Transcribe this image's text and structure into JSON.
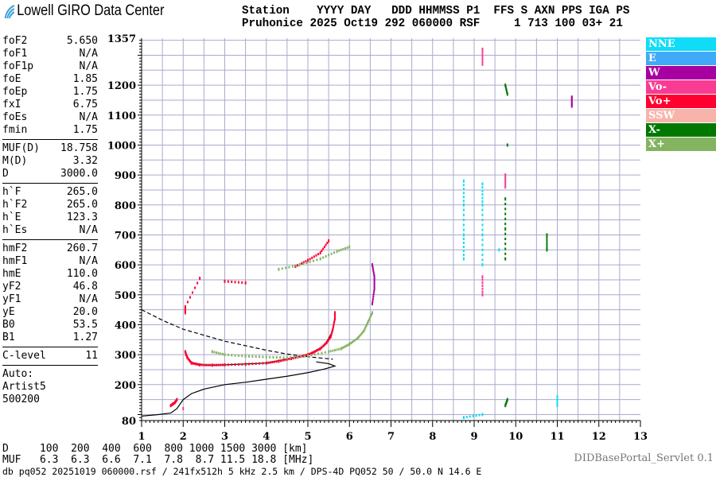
{
  "logo": {
    "text": "Lowell GIRO Data Center"
  },
  "header": {
    "line1": "Station    YYYY DAY   DDD HHMMSS P1  FFS S AXN PPS IGA PS",
    "line2": "Pruhonice 2025 Oct19 292 060000 RSF     1 713 100 03+ 21"
  },
  "params": [
    [
      [
        "foF2",
        "5.650"
      ],
      [
        "foF1",
        "N/A"
      ],
      [
        "foF1p",
        "N/A"
      ],
      [
        "foE",
        "1.85"
      ],
      [
        "foEp",
        "1.75"
      ],
      [
        "fxI",
        "6.75"
      ],
      [
        "foEs",
        "N/A"
      ],
      [
        "fmin",
        "1.75"
      ]
    ],
    [
      [
        "MUF(D)",
        "18.758"
      ],
      [
        "M(D)",
        "3.32"
      ],
      [
        "D",
        "3000.0"
      ]
    ],
    [
      [
        "h`F",
        "265.0"
      ],
      [
        "h`F2",
        "265.0"
      ],
      [
        "h`E",
        "123.3"
      ],
      [
        "h`Es",
        "N/A"
      ]
    ],
    [
      [
        "hmF2",
        "260.7"
      ],
      [
        "hmF1",
        "N/A"
      ],
      [
        "hmE",
        "110.0"
      ],
      [
        "yF2",
        "46.8"
      ],
      [
        "yF1",
        "N/A"
      ],
      [
        "yE",
        "20.0"
      ],
      [
        "B0",
        "53.5"
      ],
      [
        "B1",
        "1.27"
      ]
    ],
    [
      [
        "C-level",
        "11"
      ]
    ]
  ],
  "auto": [
    "Auto:",
    "Artist5",
    "500200"
  ],
  "bottom": {
    "d_line": "D     100  200  400  600  800 1000 1500 3000 [km]",
    "muf_line": "MUF   6.3  6.3  6.6  7.1  7.8  8.7 11.5 18.8 [MHz]"
  },
  "footer": "db pq052 20251019 060000.rsf / 241fx512h 5 kHz 2.5 km / DPS-4D PQ052 50 / 50.0 N 14.6 E",
  "servlet": "DIDBasePortal_Servlet 0.1",
  "legend": [
    {
      "label": "NNE",
      "color": "#10dcf8"
    },
    {
      "label": "E",
      "color": "#40aaf8"
    },
    {
      "label": "W",
      "color": "#a800a0"
    },
    {
      "label": "Vo-",
      "color": "#f83c94"
    },
    {
      "label": "Vo+",
      "color": "#ff0030"
    },
    {
      "label": "SSW",
      "color": "#f8b4aa"
    },
    {
      "label": "X-",
      "color": "#007800"
    },
    {
      "label": "X+",
      "color": "#84b460"
    }
  ],
  "chart_data": {
    "type": "scatter",
    "xlim": [
      1,
      13
    ],
    "ylim": [
      80,
      1357
    ],
    "x_ticks": [
      1,
      2,
      3,
      4,
      5,
      6,
      7,
      8,
      9,
      10,
      11,
      12,
      13
    ],
    "y_ticks": [
      1357,
      1200,
      1100,
      1000,
      900,
      800,
      700,
      600,
      500,
      400,
      300,
      200,
      80
    ],
    "grid": true,
    "series": [
      {
        "name": "Vo+",
        "color": "#ff0030",
        "points": [
          [
            1.7,
            130
          ],
          [
            1.75,
            135
          ],
          [
            1.8,
            140
          ],
          [
            1.85,
            150
          ],
          [
            2.05,
            310
          ],
          [
            2.1,
            290
          ],
          [
            2.2,
            272
          ],
          [
            2.4,
            266
          ],
          [
            2.7,
            265
          ],
          [
            3.0,
            266
          ],
          [
            3.5,
            268
          ],
          [
            4.0,
            272
          ],
          [
            4.3,
            278
          ],
          [
            4.6,
            287
          ],
          [
            4.9,
            296
          ],
          [
            5.1,
            305
          ],
          [
            5.3,
            320
          ],
          [
            5.45,
            340
          ],
          [
            5.55,
            360
          ],
          [
            5.6,
            385
          ],
          [
            5.65,
            420
          ],
          [
            5.65,
            440
          ],
          [
            2.05,
            440
          ],
          [
            2.05,
            460
          ],
          [
            2.4,
            555
          ],
          [
            3.0,
            545
          ],
          [
            3.5,
            540
          ],
          [
            4.7,
            595
          ],
          [
            5.0,
            615
          ],
          [
            5.3,
            640
          ],
          [
            5.5,
            680
          ]
        ]
      },
      {
        "name": "X+",
        "color": "#84b460",
        "points": [
          [
            2.7,
            310
          ],
          [
            3.0,
            300
          ],
          [
            3.5,
            295
          ],
          [
            4.0,
            292
          ],
          [
            4.5,
            290
          ],
          [
            5.0,
            296
          ],
          [
            5.5,
            310
          ],
          [
            5.8,
            320
          ],
          [
            6.0,
            335
          ],
          [
            6.2,
            355
          ],
          [
            6.35,
            380
          ],
          [
            6.45,
            410
          ],
          [
            6.55,
            440
          ],
          [
            4.3,
            585
          ],
          [
            4.8,
            600
          ],
          [
            5.3,
            620
          ],
          [
            5.7,
            645
          ],
          [
            6.0,
            660
          ]
        ]
      },
      {
        "name": "W",
        "color": "#a800a0",
        "points": [
          [
            6.55,
            470
          ],
          [
            6.6,
            520
          ],
          [
            6.6,
            560
          ],
          [
            6.55,
            600
          ],
          [
            11.35,
            1160
          ],
          [
            11.35,
            1130
          ]
        ]
      },
      {
        "name": "NNE",
        "color": "#10dcf8",
        "points": [
          [
            8.75,
            620
          ],
          [
            8.75,
            700
          ],
          [
            8.75,
            800
          ],
          [
            8.75,
            880
          ],
          [
            9.2,
            600
          ],
          [
            9.2,
            700
          ],
          [
            9.2,
            800
          ],
          [
            9.2,
            870
          ],
          [
            9.6,
            650
          ],
          [
            8.75,
            90
          ],
          [
            9.2,
            100
          ],
          [
            11.0,
            130
          ],
          [
            11.0,
            160
          ]
        ]
      },
      {
        "name": "X-",
        "color": "#007800",
        "points": [
          [
            9.75,
            620
          ],
          [
            9.75,
            720
          ],
          [
            9.75,
            820
          ],
          [
            9.8,
            1000
          ],
          [
            9.8,
            1170
          ],
          [
            9.75,
            1200
          ],
          [
            10.75,
            650
          ],
          [
            10.75,
            700
          ],
          [
            9.75,
            130
          ],
          [
            9.8,
            150
          ]
        ]
      },
      {
        "name": "Vo-",
        "color": "#f83c94",
        "points": [
          [
            9.2,
            1320
          ],
          [
            9.2,
            1270
          ],
          [
            9.2,
            500
          ],
          [
            9.2,
            560
          ],
          [
            9.75,
            860
          ],
          [
            9.75,
            900
          ],
          [
            2.0,
            120
          ]
        ]
      }
    ],
    "curves": [
      {
        "style": "dashed",
        "points": [
          [
            1,
            450
          ],
          [
            1.5,
            415
          ],
          [
            2.0,
            385
          ],
          [
            2.5,
            365
          ],
          [
            3.0,
            345
          ],
          [
            3.5,
            330
          ],
          [
            4.0,
            315
          ],
          [
            4.5,
            302
          ],
          [
            5.0,
            293
          ],
          [
            5.6,
            285
          ]
        ]
      },
      {
        "style": "solid",
        "points": [
          [
            1,
            95
          ],
          [
            1.4,
            100
          ],
          [
            1.7,
            105
          ],
          [
            1.85,
            120
          ],
          [
            2.0,
            150
          ],
          [
            2.2,
            170
          ],
          [
            2.5,
            185
          ],
          [
            3.0,
            200
          ],
          [
            3.5,
            208
          ],
          [
            4.0,
            218
          ],
          [
            4.5,
            228
          ],
          [
            5.0,
            240
          ],
          [
            5.4,
            252
          ],
          [
            5.65,
            262
          ],
          [
            5.5,
            270
          ],
          [
            5.2,
            276
          ]
        ]
      },
      {
        "style": "solid",
        "points": [
          [
            2.05,
            300
          ],
          [
            2.2,
            275
          ],
          [
            2.5,
            265
          ],
          [
            3.0,
            266
          ],
          [
            4.0,
            272
          ],
          [
            5.0,
            300
          ],
          [
            5.4,
            330
          ],
          [
            5.6,
            380
          ]
        ]
      }
    ]
  }
}
